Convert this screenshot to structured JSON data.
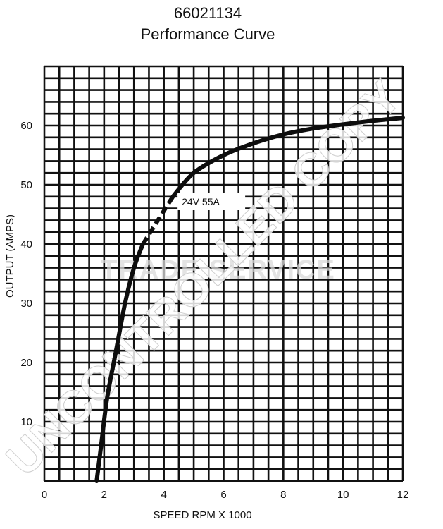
{
  "chart_data": {
    "type": "line",
    "title_lines": [
      "66021134",
      "Performance Curve"
    ],
    "xlabel": "SPEED RPM X 1000",
    "ylabel": "OUTPUT (AMPS)",
    "xlim": [
      0,
      12
    ],
    "ylim": [
      0,
      70
    ],
    "x_ticks": [
      0,
      2,
      4,
      6,
      8,
      10,
      12
    ],
    "y_ticks": [
      10,
      20,
      30,
      40,
      50,
      60
    ],
    "grid": true,
    "series": [
      {
        "name": "24V 55A",
        "style_segments": [
          "solid",
          "dashed",
          "solid"
        ],
        "points": [
          {
            "x": 1.75,
            "y": 0
          },
          {
            "x": 1.9,
            "y": 6
          },
          {
            "x": 2.1,
            "y": 14
          },
          {
            "x": 2.4,
            "y": 22
          },
          {
            "x": 2.7,
            "y": 30
          },
          {
            "x": 3.0,
            "y": 36
          },
          {
            "x": 3.3,
            "y": 40
          },
          {
            "x": 3.8,
            "y": 44
          },
          {
            "x": 4.3,
            "y": 48
          },
          {
            "x": 5.0,
            "y": 52
          },
          {
            "x": 6.0,
            "y": 55
          },
          {
            "x": 7.0,
            "y": 57
          },
          {
            "x": 8.0,
            "y": 58.5
          },
          {
            "x": 9.0,
            "y": 59.5
          },
          {
            "x": 10.0,
            "y": 60.2
          },
          {
            "x": 11.0,
            "y": 60.8
          },
          {
            "x": 12.0,
            "y": 61.3
          }
        ]
      }
    ],
    "annotations": [
      {
        "text": "24V 55A",
        "x": 4.6,
        "y": 47.5,
        "boxed": true
      }
    ]
  },
  "watermarks": {
    "diagonal": "UNCONTROLLED COPY",
    "center": "TRADE SERVICE"
  },
  "colors": {
    "grid": "#111111",
    "curve": "#0d0d0d",
    "watermark": "#d9d9d9",
    "background": "#ffffff"
  }
}
